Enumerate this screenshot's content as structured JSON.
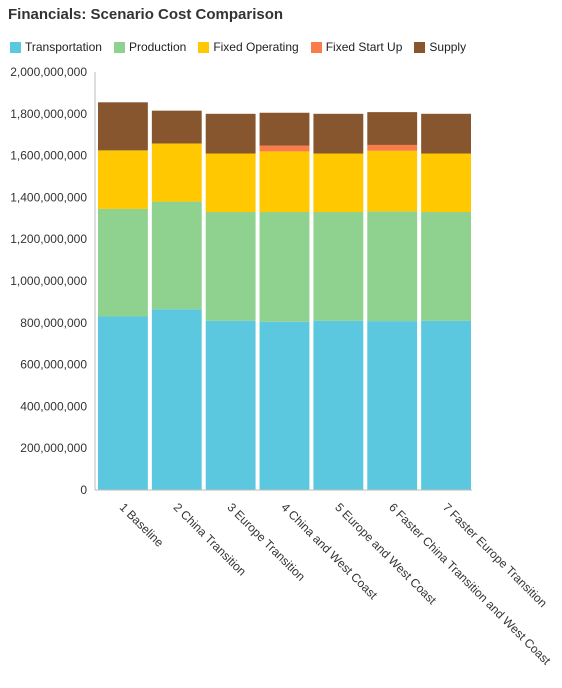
{
  "chart_data": {
    "type": "bar",
    "stacked": true,
    "title": "Financials: Scenario Cost Comparison",
    "categories": [
      "1 Baseline",
      "2 China Transition",
      "3 Europe Transition",
      "4 China and West Coast",
      "5 Europe and West Coast",
      "6 Faster China Transition and West Coast",
      "7 Faster Europe Transition"
    ],
    "series": [
      {
        "name": "Transportation",
        "color": "#5bc8df",
        "values": [
          830000000,
          865000000,
          810000000,
          805000000,
          810000000,
          808000000,
          810000000
        ]
      },
      {
        "name": "Production",
        "color": "#8fd18e",
        "values": [
          515000000,
          515000000,
          520000000,
          525000000,
          520000000,
          525000000,
          520000000
        ]
      },
      {
        "name": "Fixed Operating",
        "color": "#ffc800",
        "values": [
          280000000,
          278000000,
          280000000,
          290000000,
          280000000,
          290000000,
          280000000
        ]
      },
      {
        "name": "Fixed Start Up",
        "color": "#f97c4a",
        "values": [
          0,
          0,
          0,
          28000000,
          0,
          28000000,
          0
        ]
      },
      {
        "name": "Supply",
        "color": "#87562e",
        "values": [
          230000000,
          157000000,
          190000000,
          157000000,
          190000000,
          157000000,
          190000000
        ]
      }
    ],
    "ylim": [
      0,
      2000000000
    ],
    "yticks": [
      "0",
      "200,000,000",
      "400,000,000",
      "600,000,000",
      "800,000,000",
      "1,000,000,000",
      "1,200,000,000",
      "1,400,000,000",
      "1,600,000,000",
      "1,800,000,000",
      "2,000,000,000"
    ],
    "ytick_values": [
      0,
      200000000,
      400000000,
      600000000,
      800000000,
      1000000000,
      1200000000,
      1400000000,
      1600000000,
      1800000000,
      2000000000
    ],
    "grid": false,
    "legend_position": "top-left"
  }
}
